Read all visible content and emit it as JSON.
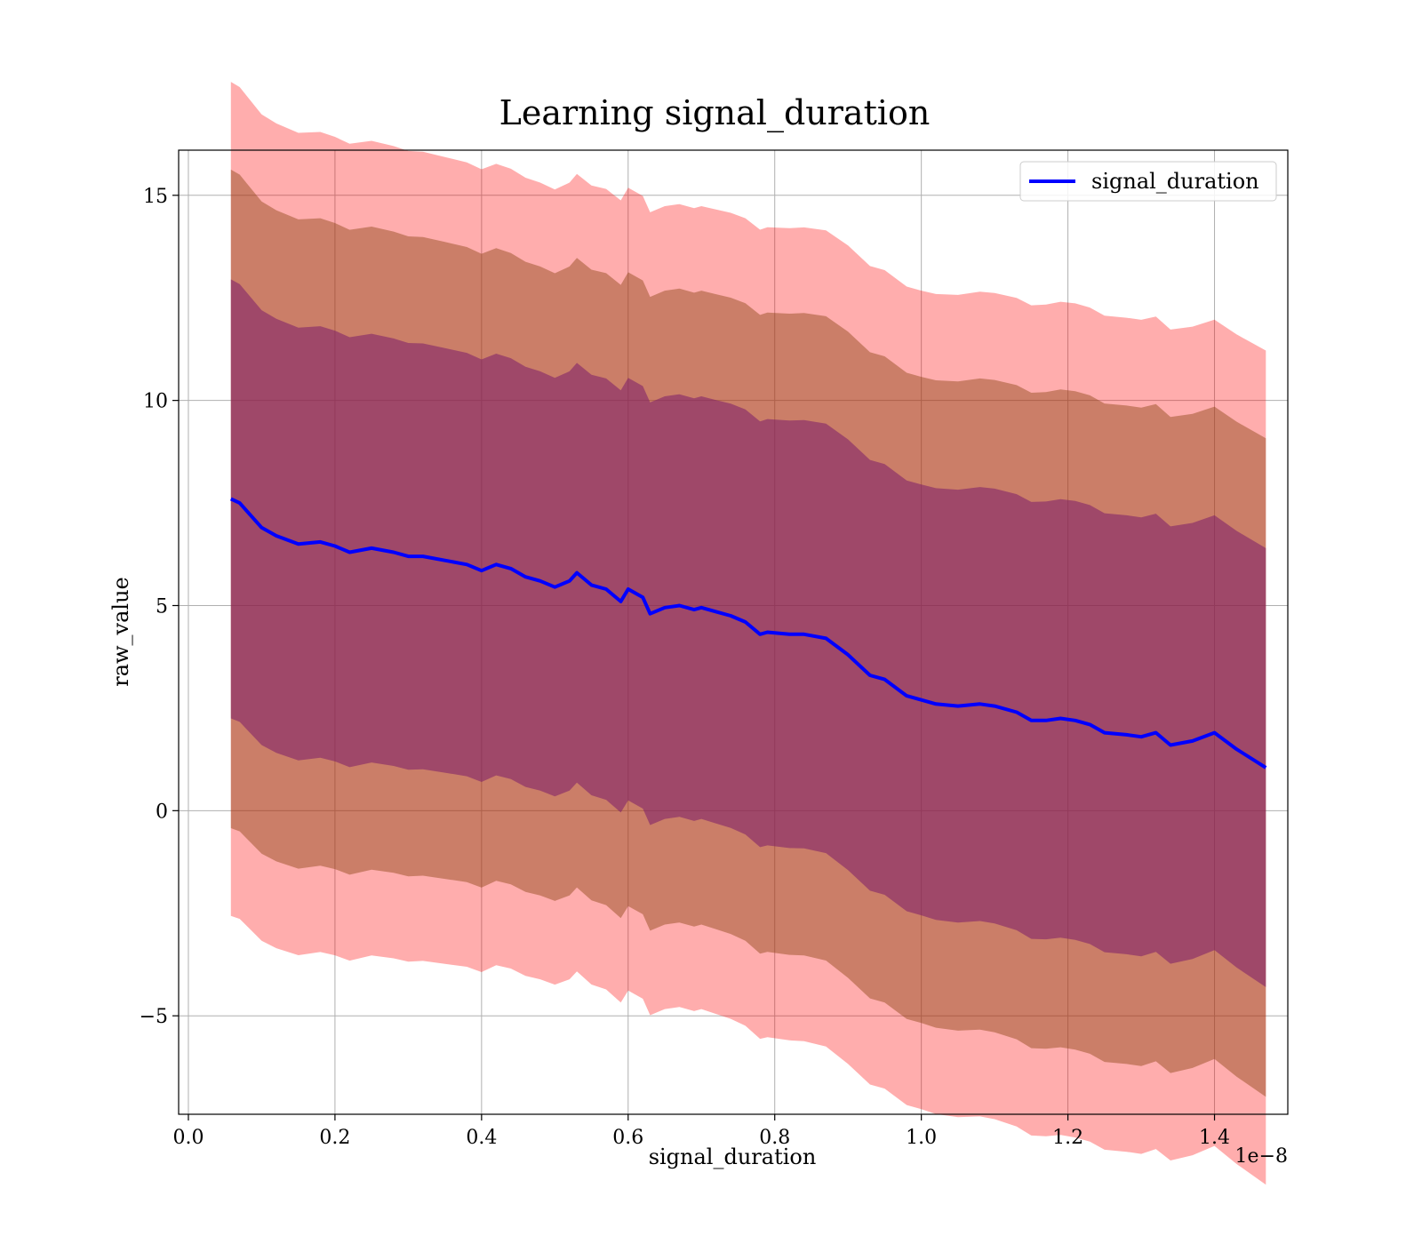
{
  "chart_data": {
    "type": "line",
    "title": "Learning signal_duration",
    "xlabel": "signal_duration",
    "ylabel": "raw_value",
    "x_offset_label": "1e−8",
    "xlim": [
      -0.0133,
      1.5
    ],
    "ylim": [
      -7.4,
      16.1
    ],
    "x_ticks": [
      0.0,
      0.2,
      0.4,
      0.6,
      0.8,
      1.0,
      1.2,
      1.4
    ],
    "x_tick_labels": [
      "0.0",
      "0.2",
      "0.4",
      "0.6",
      "0.8",
      "1.0",
      "1.2",
      "1.4"
    ],
    "y_ticks": [
      -5,
      0,
      5,
      10,
      15
    ],
    "y_tick_labels": [
      "−5",
      "0",
      "5",
      "10",
      "15"
    ],
    "grid": true,
    "legend": {
      "position": "top-right",
      "entries": [
        "signal_duration"
      ]
    },
    "colors": {
      "mean_line": "#0000ff",
      "band_3sigma": "#ff0000",
      "band_2sigma": "#8b4513",
      "band_1sigma": "#7b1b6a",
      "grid": "#b0b0b0"
    },
    "band_sigma": {
      "one": 1.0,
      "two": 1.5,
      "three": 1.9
    },
    "series": [
      {
        "name": "signal_duration",
        "x": [
          0.058,
          0.07,
          0.08,
          0.1,
          0.12,
          0.15,
          0.18,
          0.2,
          0.22,
          0.25,
          0.28,
          0.3,
          0.32,
          0.35,
          0.38,
          0.4,
          0.42,
          0.44,
          0.46,
          0.48,
          0.5,
          0.52,
          0.53,
          0.55,
          0.57,
          0.59,
          0.6,
          0.62,
          0.63,
          0.65,
          0.67,
          0.69,
          0.7,
          0.72,
          0.74,
          0.76,
          0.78,
          0.79,
          0.82,
          0.84,
          0.87,
          0.9,
          0.93,
          0.95,
          0.98,
          1.0,
          1.02,
          1.05,
          1.08,
          1.1,
          1.13,
          1.15,
          1.17,
          1.19,
          1.21,
          1.23,
          1.25,
          1.28,
          1.3,
          1.32,
          1.34,
          1.37,
          1.4,
          1.43,
          1.47
        ],
        "values": [
          7.6,
          7.5,
          7.3,
          6.9,
          6.7,
          6.5,
          6.55,
          6.45,
          6.3,
          6.4,
          6.3,
          6.2,
          6.2,
          6.1,
          6.0,
          5.85,
          6.0,
          5.9,
          5.7,
          5.6,
          5.45,
          5.6,
          5.8,
          5.5,
          5.4,
          5.1,
          5.4,
          5.2,
          4.8,
          4.95,
          5.0,
          4.9,
          4.95,
          4.85,
          4.75,
          4.6,
          4.3,
          4.35,
          4.3,
          4.3,
          4.2,
          3.8,
          3.3,
          3.2,
          2.8,
          2.7,
          2.6,
          2.55,
          2.6,
          2.55,
          2.4,
          2.2,
          2.2,
          2.25,
          2.2,
          2.1,
          1.9,
          1.85,
          1.8,
          1.9,
          1.6,
          1.7,
          1.9,
          1.5,
          1.05
        ]
      }
    ],
    "band_std": {
      "x": [
        0.058,
        0.1,
        0.2,
        0.3,
        0.4,
        0.5,
        0.6,
        0.7,
        0.8,
        0.9,
        1.0,
        1.1,
        1.2,
        1.3,
        1.4,
        1.47
      ],
      "values": [
        5.35,
        5.3,
        5.25,
        5.2,
        5.15,
        5.1,
        5.15,
        5.15,
        5.2,
        5.25,
        5.25,
        5.3,
        5.35,
        5.35,
        5.3,
        5.35
      ]
    }
  }
}
